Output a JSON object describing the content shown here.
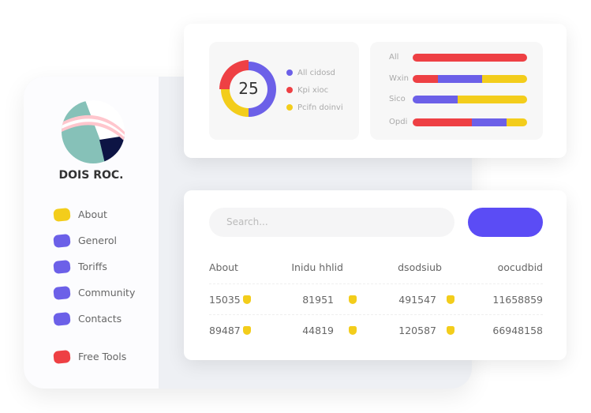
{
  "colors": {
    "purple": "#6c60e8",
    "red": "#ee4044",
    "yellow": "#f3cd1b",
    "button": "#5b4cf5"
  },
  "profile": {
    "name": "DOIS ROC."
  },
  "sidebar": {
    "items": [
      {
        "label": "About",
        "color": "#f3cd1b"
      },
      {
        "label": "Generol",
        "color": "#6c60e8"
      },
      {
        "label": "Toriffs",
        "color": "#6c60e8"
      },
      {
        "label": "Community",
        "color": "#6c60e8"
      },
      {
        "label": "Contacts",
        "color": "#6c60e8"
      },
      {
        "label": "Free Tools",
        "color": "#ee4044"
      }
    ]
  },
  "donut": {
    "value": "25",
    "segments": [
      {
        "label": "All cidosd",
        "percent": 50,
        "color": "#6c60e8"
      },
      {
        "label": "Pcifn doinvi",
        "percent": 25,
        "color": "#f3cd1b"
      },
      {
        "label": "Kpi xioc",
        "percent": 25,
        "color": "#ee4044"
      }
    ],
    "legend": [
      {
        "label": "All cidosd",
        "color": "#6c60e8"
      },
      {
        "label": "Kpi xioc",
        "color": "#ee4044"
      },
      {
        "label": "Pcifn doinvi",
        "color": "#f3cd1b"
      }
    ]
  },
  "bars": [
    {
      "label": "All",
      "segments": [
        {
          "percent": 100,
          "color": "#ee4044"
        }
      ]
    },
    {
      "label": "Wxin",
      "segments": [
        {
          "percent": 22,
          "color": "#ee4044"
        },
        {
          "percent": 39,
          "color": "#6c60e8"
        },
        {
          "percent": 39,
          "color": "#f3cd1b"
        }
      ]
    },
    {
      "label": "Sico",
      "segments": [
        {
          "percent": 39,
          "color": "#6c60e8"
        },
        {
          "percent": 61,
          "color": "#f3cd1b"
        }
      ]
    },
    {
      "label": "Opdi",
      "segments": [
        {
          "percent": 52,
          "color": "#ee4044"
        },
        {
          "percent": 30,
          "color": "#6c60e8"
        },
        {
          "percent": 18,
          "color": "#f3cd1b"
        }
      ]
    }
  ],
  "search": {
    "placeholder": "Search..."
  },
  "table": {
    "headers": [
      "About",
      "Inidu hhlid",
      "dsodsiub",
      "oocudbid"
    ],
    "rows": [
      [
        "15035",
        "81951",
        "491547",
        "11658859"
      ],
      [
        "89487",
        "44819",
        "120587",
        "66948158"
      ]
    ]
  }
}
